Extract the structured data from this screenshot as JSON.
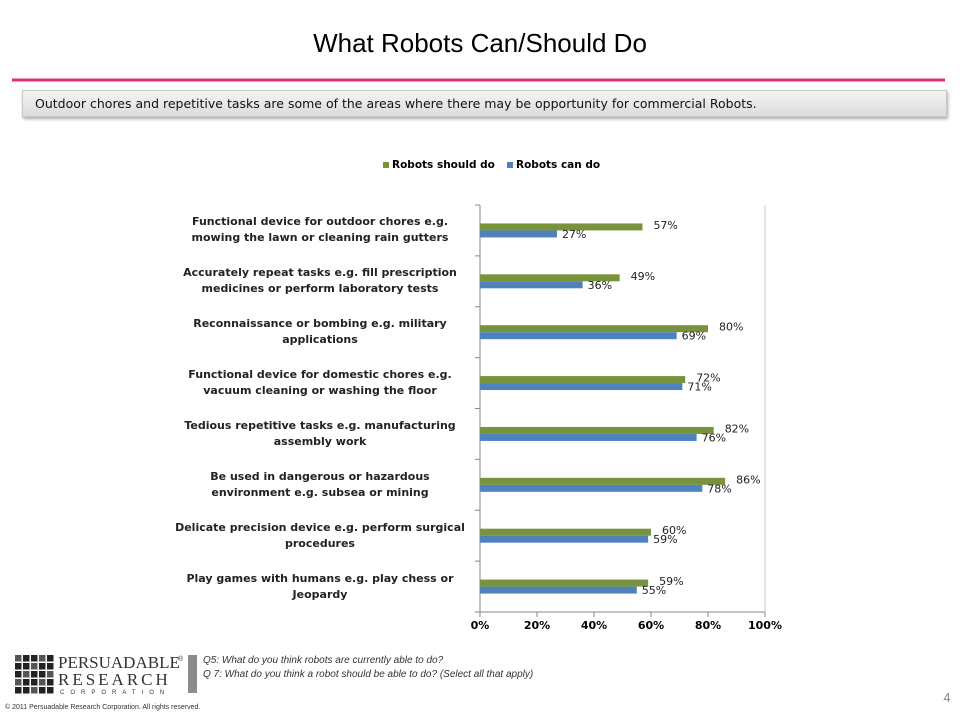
{
  "title": "What Robots Can/Should Do",
  "banner": "Outdoor chores and repetitive tasks are some of the areas where there may be opportunity for commercial Robots.",
  "chart_data": {
    "type": "bar",
    "orientation": "horizontal",
    "categories": [
      "Functional device for outdoor chores e.g. mowing the lawn or cleaning rain gutters",
      "Accurately repeat tasks e.g. fill prescription medicines or perform laboratory tests",
      "Reconnaissance or bombing e.g. military applications",
      "Functional device for domestic chores e.g. vacuum cleaning or washing the floor",
      "Tedious repetitive tasks e.g. manufacturing assembly work",
      "Be used in dangerous or hazardous environment e.g. subsea or mining",
      "Delicate precision device e.g. perform surgical procedures",
      "Play games with humans e.g. play chess or Jeopardy"
    ],
    "series": [
      {
        "name": "Robots should do",
        "color": "#77933c",
        "values": [
          57,
          49,
          80,
          72,
          82,
          86,
          60,
          59
        ],
        "value_labels": [
          "57%",
          "49%",
          "80%",
          "72%",
          "82%",
          "86%",
          "60%",
          "59%"
        ]
      },
      {
        "name": "Robots can do",
        "color": "#4f81bd",
        "values": [
          27,
          36,
          69,
          71,
          76,
          78,
          59,
          55
        ],
        "value_labels": [
          "27%",
          "36%",
          "69%",
          "71%",
          "76%",
          "78%",
          "59%",
          "55%"
        ]
      }
    ],
    "xlim": [
      0,
      100
    ],
    "xticks": [
      {
        "value": 0,
        "label": "0%"
      },
      {
        "value": 20,
        "label": "20%"
      },
      {
        "value": 40,
        "label": "40%"
      },
      {
        "value": 60,
        "label": "60%"
      },
      {
        "value": 80,
        "label": "80%"
      },
      {
        "value": 100,
        "label": "100%"
      }
    ],
    "grid": false,
    "legend": "top"
  },
  "footer": {
    "logo_line1": "PERSUADABLE",
    "logo_mark": "®",
    "logo_line2": "RESEARCH",
    "logo_line3": "CORPORATION",
    "copyright": "© 2011 Persuadable Research Corporation. All rights reserved.",
    "question1": "Q5: What do you think robots are currently able to do?",
    "question2": "Q 7: What do you think a robot should be able to do? (Select all that apply)"
  },
  "page_number": "4"
}
